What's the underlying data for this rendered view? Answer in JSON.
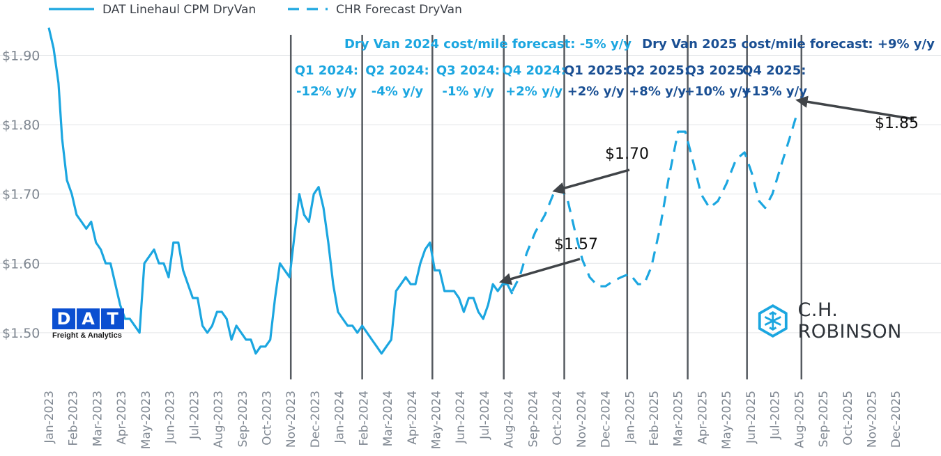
{
  "chart_data": {
    "type": "line",
    "title": "",
    "xlabel": "",
    "ylabel": "",
    "ylim": [
      1.43,
      1.97
    ],
    "y_ticks": [
      {
        "value": 1.9,
        "label": "$1.90"
      },
      {
        "value": 1.8,
        "label": "$1.80"
      },
      {
        "value": 1.7,
        "label": "$1.70"
      },
      {
        "value": 1.6,
        "label": "$1.60"
      },
      {
        "value": 1.5,
        "label": "$1.50"
      }
    ],
    "x_ticks": [
      "Jan-2023",
      "Feb-2023",
      "Mar-2023",
      "Apr-2023",
      "May-2023",
      "Jun-2023",
      "Jul-2023",
      "Aug-2023",
      "Sep-2023",
      "Oct-2023",
      "Nov-2023",
      "Dec-2023",
      "Jan-2024",
      "Feb-2024",
      "Mar-2024",
      "Apr-2024",
      "May-2024",
      "Jun-2024",
      "Jul-2024",
      "Aug-2024",
      "Sep-2024",
      "Oct-2024",
      "Nov-2024",
      "Dec-2024",
      "Jan-2025",
      "Feb-2025",
      "Mar-2025",
      "Apr-2025",
      "May-2025",
      "Jun-2025",
      "Jul-2025",
      "Aug-2025",
      "Sep-2025",
      "Oct-2025",
      "Nov-2025",
      "Dec-2025"
    ],
    "series": [
      {
        "name": "DAT Linehaul CPM DryVan",
        "style": "solid",
        "color": "#1ba6e0",
        "points": [
          [
            0,
            1.94
          ],
          [
            0.2,
            1.91
          ],
          [
            0.4,
            1.86
          ],
          [
            0.55,
            1.78
          ],
          [
            0.75,
            1.72
          ],
          [
            0.95,
            1.7
          ],
          [
            1.15,
            1.67
          ],
          [
            1.35,
            1.66
          ],
          [
            1.55,
            1.65
          ],
          [
            1.75,
            1.66
          ],
          [
            1.95,
            1.63
          ],
          [
            2.15,
            1.62
          ],
          [
            2.35,
            1.6
          ],
          [
            2.55,
            1.6
          ],
          [
            2.75,
            1.57
          ],
          [
            2.95,
            1.54
          ],
          [
            3.15,
            1.52
          ],
          [
            3.35,
            1.52
          ],
          [
            3.55,
            1.51
          ],
          [
            3.75,
            1.5
          ],
          [
            3.95,
            1.6
          ],
          [
            4.15,
            1.61
          ],
          [
            4.35,
            1.62
          ],
          [
            4.55,
            1.6
          ],
          [
            4.75,
            1.6
          ],
          [
            4.95,
            1.58
          ],
          [
            5.15,
            1.63
          ],
          [
            5.35,
            1.63
          ],
          [
            5.55,
            1.59
          ],
          [
            5.75,
            1.57
          ],
          [
            5.95,
            1.55
          ],
          [
            6.15,
            1.55
          ],
          [
            6.35,
            1.51
          ],
          [
            6.55,
            1.5
          ],
          [
            6.75,
            1.51
          ],
          [
            6.95,
            1.53
          ],
          [
            7.15,
            1.53
          ],
          [
            7.35,
            1.52
          ],
          [
            7.55,
            1.49
          ],
          [
            7.75,
            1.51
          ],
          [
            7.95,
            1.5
          ],
          [
            8.15,
            1.49
          ],
          [
            8.35,
            1.49
          ],
          [
            8.55,
            1.47
          ],
          [
            8.75,
            1.48
          ],
          [
            8.95,
            1.48
          ],
          [
            9.15,
            1.49
          ],
          [
            9.35,
            1.55
          ],
          [
            9.55,
            1.6
          ],
          [
            9.75,
            1.59
          ],
          [
            9.95,
            1.58
          ],
          [
            10.15,
            1.64
          ],
          [
            10.35,
            1.7
          ],
          [
            10.55,
            1.67
          ],
          [
            10.75,
            1.66
          ],
          [
            10.95,
            1.7
          ],
          [
            11.15,
            1.71
          ],
          [
            11.35,
            1.68
          ],
          [
            11.55,
            1.63
          ],
          [
            11.75,
            1.57
          ],
          [
            11.95,
            1.53
          ],
          [
            12.15,
            1.52
          ],
          [
            12.35,
            1.51
          ],
          [
            12.55,
            1.51
          ],
          [
            12.75,
            1.5
          ],
          [
            12.95,
            1.51
          ],
          [
            13.15,
            1.5
          ],
          [
            13.35,
            1.49
          ],
          [
            13.55,
            1.48
          ],
          [
            13.75,
            1.47
          ],
          [
            13.95,
            1.48
          ],
          [
            14.15,
            1.49
          ],
          [
            14.35,
            1.56
          ],
          [
            14.55,
            1.57
          ],
          [
            14.75,
            1.58
          ],
          [
            14.95,
            1.57
          ],
          [
            15.15,
            1.57
          ],
          [
            15.35,
            1.6
          ],
          [
            15.55,
            1.62
          ],
          [
            15.75,
            1.63
          ],
          [
            15.95,
            1.59
          ],
          [
            16.15,
            1.59
          ],
          [
            16.35,
            1.56
          ],
          [
            16.55,
            1.56
          ],
          [
            16.75,
            1.56
          ],
          [
            16.95,
            1.55
          ],
          [
            17.15,
            1.53
          ],
          [
            17.35,
            1.55
          ],
          [
            17.55,
            1.55
          ],
          [
            17.75,
            1.53
          ],
          [
            17.95,
            1.52
          ],
          [
            18.15,
            1.54
          ],
          [
            18.35,
            1.57
          ],
          [
            18.55,
            1.56
          ],
          [
            18.75,
            1.57
          ],
          [
            18.95,
            1.57
          ],
          [
            19.15,
            1.556
          ]
        ]
      },
      {
        "name": "CHR Forecast DryVan",
        "style": "dashed",
        "color": "#1ba6e0",
        "points": [
          [
            19.15,
            1.56
          ],
          [
            19.45,
            1.58
          ],
          [
            19.75,
            1.615
          ],
          [
            20.1,
            1.645
          ],
          [
            20.5,
            1.67
          ],
          [
            20.85,
            1.7
          ],
          [
            21.15,
            1.71
          ],
          [
            21.45,
            1.69
          ],
          [
            21.75,
            1.645
          ],
          [
            22.05,
            1.605
          ],
          [
            22.35,
            1.58
          ],
          [
            22.7,
            1.567
          ],
          [
            23.0,
            1.567
          ],
          [
            23.3,
            1.574
          ],
          [
            23.65,
            1.58
          ],
          [
            24.0,
            1.585
          ],
          [
            24.35,
            1.57
          ],
          [
            24.6,
            1.57
          ],
          [
            24.9,
            1.595
          ],
          [
            25.25,
            1.65
          ],
          [
            25.6,
            1.72
          ],
          [
            26.0,
            1.79
          ],
          [
            26.3,
            1.79
          ],
          [
            26.6,
            1.75
          ],
          [
            26.95,
            1.7
          ],
          [
            27.3,
            1.68
          ],
          [
            27.65,
            1.69
          ],
          [
            28.0,
            1.715
          ],
          [
            28.4,
            1.75
          ],
          [
            28.75,
            1.76
          ],
          [
            29.05,
            1.73
          ],
          [
            29.35,
            1.69
          ],
          [
            29.6,
            1.68
          ],
          [
            29.9,
            1.7
          ],
          [
            30.25,
            1.74
          ],
          [
            30.65,
            1.785
          ],
          [
            30.95,
            1.82
          ]
        ]
      }
    ],
    "quarter_dividers": [
      10.0,
      12.95,
      15.85,
      18.8,
      21.3,
      23.9,
      26.4,
      28.85,
      31.1
    ],
    "legend": [
      {
        "label": "DAT Linehaul CPM DryVan",
        "style": "solid"
      },
      {
        "label": "CHR Forecast DryVan",
        "style": "dashed"
      }
    ],
    "annotations": [
      {
        "text": "$1.57",
        "target": [
          18.75,
          1.574
        ]
      },
      {
        "text": "$1.70",
        "target": [
          20.95,
          1.705
        ]
      },
      {
        "text": "$1.85",
        "target": [
          31.0,
          1.835
        ]
      }
    ],
    "headers": [
      {
        "text": "Dry Van 2024 cost/mile forecast: -5% y/y",
        "color": "#1ba6e0"
      },
      {
        "text": "Dry Van 2025 cost/mile forecast: +9% y/y",
        "color": "#1a4f93"
      }
    ],
    "quarters": [
      {
        "q": "Q1 2024:",
        "pct": "-12% y/y",
        "color": "#1ba6e0"
      },
      {
        "q": "Q2 2024:",
        "pct": "-4% y/y",
        "color": "#1ba6e0"
      },
      {
        "q": "Q3 2024:",
        "pct": "-1% y/y",
        "color": "#1ba6e0"
      },
      {
        "q": "Q4 2024:",
        "pct": "+2% y/y",
        "color": "#1ba6e0"
      },
      {
        "q": "Q1 2025:",
        "pct": "+2% y/y",
        "color": "#1a4f93"
      },
      {
        "q": "Q2 2025:",
        "pct": "+8% y/y",
        "color": "#1a4f93"
      },
      {
        "q": "Q3 2025:",
        "pct": "+10% y/y",
        "color": "#1a4f93"
      },
      {
        "q": "Q4 2025:",
        "pct": "+13% y/y",
        "color": "#1a4f93"
      }
    ]
  },
  "logos": {
    "dat_letters": [
      "D",
      "A",
      "T"
    ],
    "dat_sub": "Freight & Analytics",
    "chr_text": "C.H. ROBINSON"
  }
}
